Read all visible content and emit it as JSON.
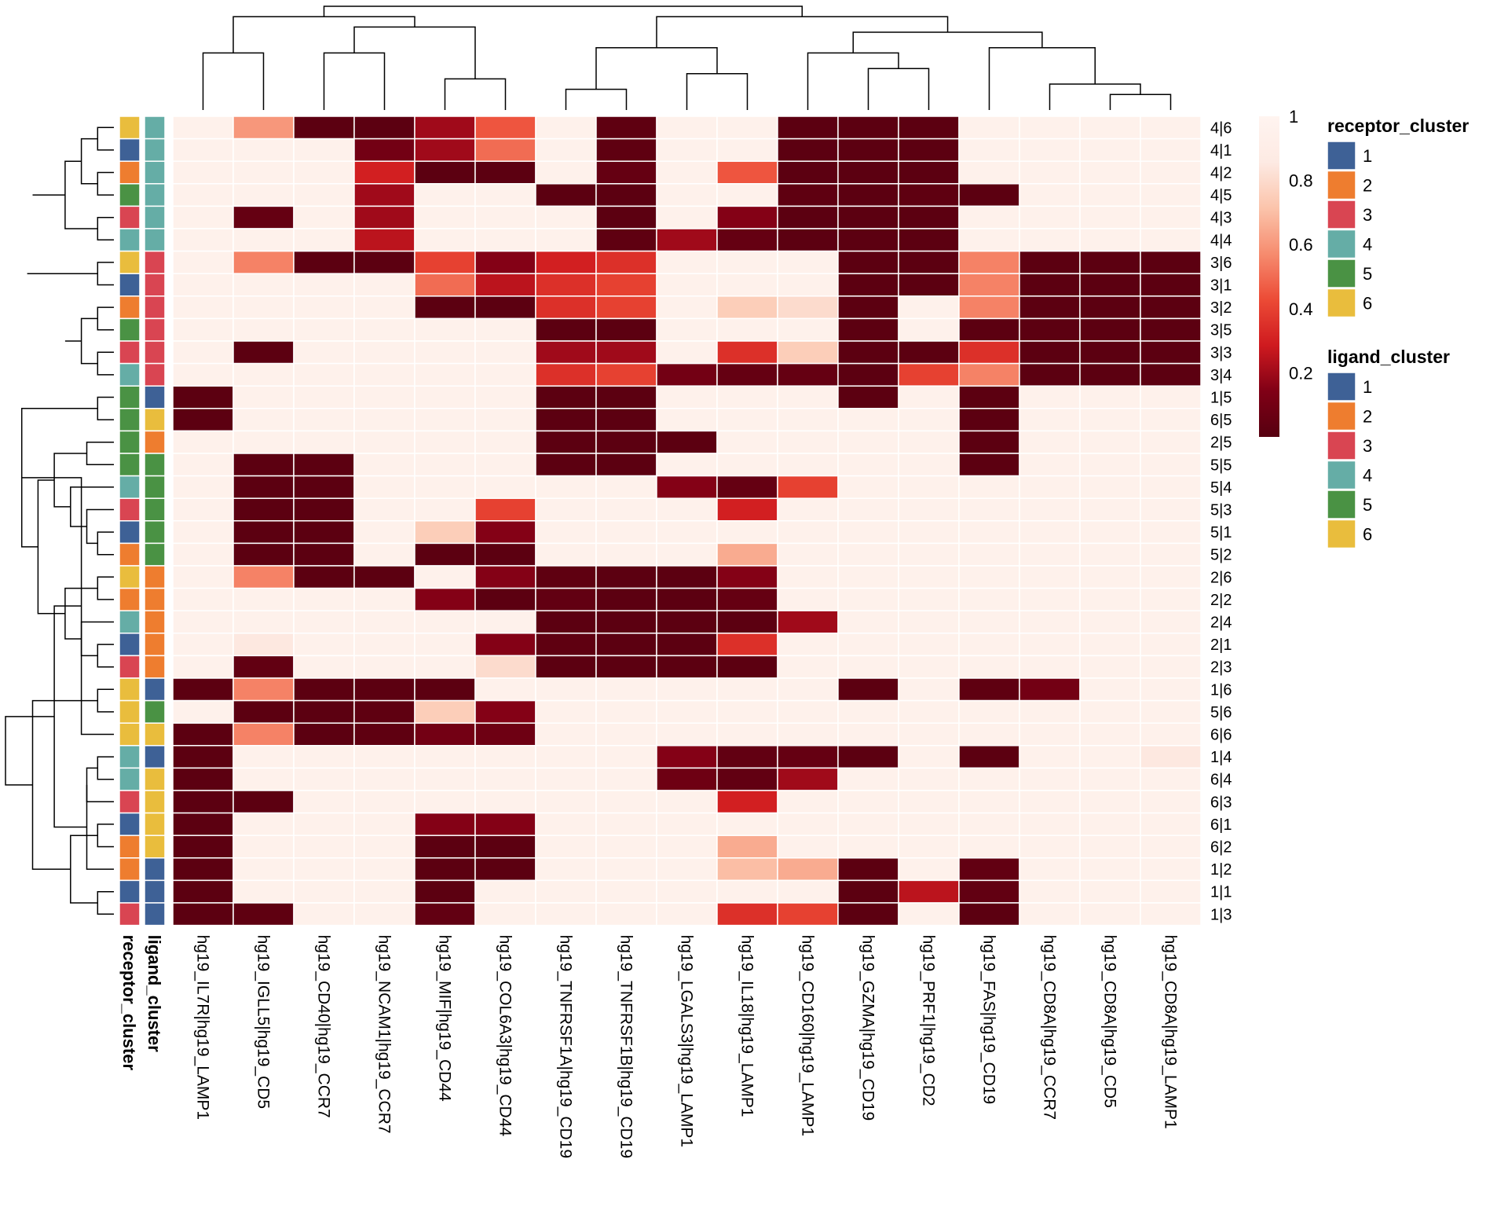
{
  "chart_data": {
    "type": "heatmap",
    "columns": [
      "hg19_IL7R|hg19_LAMP1",
      "hg19_IGLL5|hg19_CD5",
      "hg19_CD40|hg19_CCR7",
      "hg19_NCAM1|hg19_CCR7",
      "hg19_MIF|hg19_CD44",
      "hg19_COL6A3|hg19_CD44",
      "hg19_TNFRSF1A|hg19_CD19",
      "hg19_TNFRSF1B|hg19_CD19",
      "hg19_LGALS3|hg19_LAMP1",
      "hg19_IL18|hg19_LAMP1",
      "hg19_CD160|hg19_LAMP1",
      "hg19_GZMA|hg19_CD19",
      "hg19_PRF1|hg19_CD2",
      "hg19_FAS|hg19_CD19",
      "hg19_CD8A|hg19_CCR7",
      "hg19_CD8A|hg19_CD5",
      "hg19_CD8A|hg19_LAMP1"
    ],
    "rows": [
      "4|6",
      "4|1",
      "4|2",
      "4|5",
      "4|3",
      "4|4",
      "3|6",
      "3|1",
      "3|2",
      "3|5",
      "3|3",
      "3|4",
      "1|5",
      "6|5",
      "2|5",
      "5|5",
      "5|4",
      "5|3",
      "5|1",
      "5|2",
      "2|6",
      "2|2",
      "2|4",
      "2|1",
      "2|3",
      "1|6",
      "5|6",
      "6|6",
      "1|4",
      "6|4",
      "6|3",
      "6|1",
      "6|2",
      "1|2",
      "1|1",
      "1|3"
    ],
    "receptor_cluster": [
      6,
      1,
      2,
      5,
      3,
      4,
      6,
      1,
      2,
      5,
      3,
      4,
      5,
      5,
      5,
      5,
      4,
      3,
      1,
      2,
      6,
      2,
      4,
      1,
      3,
      6,
      6,
      6,
      4,
      4,
      3,
      1,
      2,
      2,
      1,
      3
    ],
    "ligand_cluster": [
      4,
      4,
      4,
      4,
      4,
      4,
      3,
      3,
      3,
      3,
      3,
      3,
      1,
      6,
      2,
      5,
      5,
      5,
      5,
      5,
      2,
      2,
      2,
      2,
      2,
      1,
      5,
      6,
      1,
      6,
      6,
      6,
      6,
      1,
      1,
      1
    ],
    "values": [
      [
        0.95,
        0.6,
        0.02,
        0.02,
        0.2,
        0.45,
        0.95,
        0.03,
        0.95,
        0.95,
        0.02,
        0.02,
        0.02,
        0.95,
        0.95,
        0.95,
        0.95
      ],
      [
        0.95,
        0.95,
        0.95,
        0.1,
        0.2,
        0.5,
        0.95,
        0.03,
        0.95,
        0.95,
        0.02,
        0.02,
        0.02,
        0.95,
        0.95,
        0.95,
        0.95
      ],
      [
        0.95,
        0.95,
        0.95,
        0.3,
        0.02,
        0.02,
        0.95,
        0.05,
        0.95,
        0.45,
        0.02,
        0.02,
        0.02,
        0.95,
        0.95,
        0.95,
        0.95
      ],
      [
        0.95,
        0.95,
        0.95,
        0.2,
        0.95,
        0.95,
        0.02,
        0.02,
        0.95,
        0.95,
        0.03,
        0.02,
        0.03,
        0.02,
        0.95,
        0.95,
        0.95
      ],
      [
        0.95,
        0.05,
        0.95,
        0.2,
        0.95,
        0.95,
        0.95,
        0.02,
        0.95,
        0.15,
        0.02,
        0.02,
        0.02,
        0.95,
        0.95,
        0.95,
        0.95
      ],
      [
        0.95,
        0.95,
        0.95,
        0.25,
        0.95,
        0.95,
        0.95,
        0.03,
        0.2,
        0.05,
        0.02,
        0.02,
        0.02,
        0.95,
        0.95,
        0.95,
        0.95
      ],
      [
        0.95,
        0.55,
        0.02,
        0.02,
        0.4,
        0.15,
        0.3,
        0.35,
        0.95,
        0.95,
        0.95,
        0.02,
        0.02,
        0.55,
        0.02,
        0.02,
        0.02
      ],
      [
        0.95,
        0.95,
        0.95,
        0.95,
        0.5,
        0.25,
        0.35,
        0.4,
        0.95,
        0.95,
        0.95,
        0.02,
        0.02,
        0.55,
        0.02,
        0.02,
        0.02
      ],
      [
        0.95,
        0.95,
        0.95,
        0.95,
        0.02,
        0.02,
        0.35,
        0.4,
        0.95,
        0.75,
        0.8,
        0.02,
        0.95,
        0.55,
        0.02,
        0.02,
        0.02
      ],
      [
        0.95,
        0.95,
        0.95,
        0.95,
        0.95,
        0.95,
        0.02,
        0.02,
        0.95,
        0.95,
        0.95,
        0.02,
        0.95,
        0.02,
        0.02,
        0.02,
        0.02
      ],
      [
        0.95,
        0.02,
        0.95,
        0.95,
        0.95,
        0.95,
        0.2,
        0.2,
        0.95,
        0.35,
        0.75,
        0.02,
        0.02,
        0.35,
        0.02,
        0.02,
        0.02
      ],
      [
        0.95,
        0.95,
        0.95,
        0.95,
        0.95,
        0.95,
        0.35,
        0.4,
        0.1,
        0.05,
        0.05,
        0.02,
        0.4,
        0.55,
        0.02,
        0.02,
        0.02
      ],
      [
        0.02,
        0.95,
        0.95,
        0.95,
        0.95,
        0.95,
        0.02,
        0.02,
        0.95,
        0.95,
        0.95,
        0.02,
        0.95,
        0.02,
        0.95,
        0.95,
        0.95
      ],
      [
        0.02,
        0.95,
        0.95,
        0.95,
        0.95,
        0.95,
        0.02,
        0.02,
        0.95,
        0.95,
        0.95,
        0.95,
        0.95,
        0.02,
        0.95,
        0.95,
        0.95
      ],
      [
        0.95,
        0.95,
        0.95,
        0.95,
        0.95,
        0.95,
        0.02,
        0.02,
        0.02,
        0.95,
        0.95,
        0.95,
        0.95,
        0.02,
        0.95,
        0.95,
        0.95
      ],
      [
        0.95,
        0.02,
        0.02,
        0.95,
        0.95,
        0.95,
        0.02,
        0.02,
        0.95,
        0.95,
        0.95,
        0.95,
        0.95,
        0.02,
        0.95,
        0.95,
        0.95
      ],
      [
        0.95,
        0.02,
        0.02,
        0.95,
        0.95,
        0.95,
        0.95,
        0.95,
        0.15,
        0.05,
        0.4,
        0.95,
        0.95,
        0.95,
        0.95,
        0.95,
        0.95
      ],
      [
        0.95,
        0.02,
        0.02,
        0.95,
        0.95,
        0.4,
        0.95,
        0.95,
        0.95,
        0.3,
        0.95,
        0.95,
        0.95,
        0.95,
        0.95,
        0.95,
        0.95
      ],
      [
        0.95,
        0.02,
        0.02,
        0.95,
        0.75,
        0.15,
        0.95,
        0.95,
        0.95,
        0.95,
        0.95,
        0.95,
        0.95,
        0.95,
        0.95,
        0.95,
        0.95
      ],
      [
        0.95,
        0.02,
        0.02,
        0.95,
        0.02,
        0.02,
        0.95,
        0.95,
        0.95,
        0.65,
        0.95,
        0.95,
        0.95,
        0.95,
        0.95,
        0.95,
        0.95
      ],
      [
        0.95,
        0.55,
        0.02,
        0.02,
        0.95,
        0.15,
        0.03,
        0.02,
        0.02,
        0.15,
        0.95,
        0.95,
        0.95,
        0.95,
        0.95,
        0.95,
        0.95
      ],
      [
        0.95,
        0.95,
        0.95,
        0.95,
        0.15,
        0.02,
        0.04,
        0.02,
        0.02,
        0.05,
        0.95,
        0.95,
        0.95,
        0.95,
        0.95,
        0.95,
        0.95
      ],
      [
        0.95,
        0.95,
        0.95,
        0.95,
        0.95,
        0.95,
        0.02,
        0.02,
        0.02,
        0.02,
        0.2,
        0.95,
        0.95,
        0.95,
        0.95,
        0.95,
        0.95
      ],
      [
        0.95,
        0.85,
        0.95,
        0.95,
        0.95,
        0.15,
        0.03,
        0.02,
        0.02,
        0.35,
        0.95,
        0.95,
        0.95,
        0.95,
        0.95,
        0.95,
        0.95
      ],
      [
        0.95,
        0.04,
        0.95,
        0.95,
        0.95,
        0.8,
        0.02,
        0.02,
        0.02,
        0.02,
        0.95,
        0.95,
        0.95,
        0.95,
        0.95,
        0.95,
        0.95
      ],
      [
        0.02,
        0.55,
        0.02,
        0.02,
        0.02,
        0.95,
        0.95,
        0.95,
        0.95,
        0.95,
        0.95,
        0.02,
        0.95,
        0.03,
        0.1,
        0.95,
        0.95
      ],
      [
        0.95,
        0.02,
        0.02,
        0.03,
        0.75,
        0.15,
        0.95,
        0.95,
        0.95,
        0.95,
        0.95,
        0.95,
        0.95,
        0.95,
        0.95,
        0.95,
        0.95
      ],
      [
        0.02,
        0.55,
        0.02,
        0.03,
        0.1,
        0.08,
        0.95,
        0.95,
        0.95,
        0.95,
        0.95,
        0.95,
        0.95,
        0.95,
        0.95,
        0.95,
        0.95
      ],
      [
        0.02,
        0.95,
        0.95,
        0.95,
        0.95,
        0.95,
        0.95,
        0.95,
        0.15,
        0.04,
        0.05,
        0.02,
        0.95,
        0.02,
        0.95,
        0.95,
        0.85
      ],
      [
        0.02,
        0.95,
        0.95,
        0.95,
        0.95,
        0.95,
        0.95,
        0.95,
        0.08,
        0.04,
        0.2,
        0.95,
        0.95,
        0.95,
        0.95,
        0.95,
        0.95
      ],
      [
        0.02,
        0.02,
        0.95,
        0.95,
        0.95,
        0.95,
        0.95,
        0.95,
        0.95,
        0.3,
        0.95,
        0.95,
        0.95,
        0.95,
        0.95,
        0.95,
        0.95
      ],
      [
        0.02,
        0.95,
        0.95,
        0.95,
        0.15,
        0.15,
        0.95,
        0.95,
        0.95,
        0.95,
        0.95,
        0.95,
        0.95,
        0.95,
        0.95,
        0.95,
        0.95
      ],
      [
        0.02,
        0.95,
        0.95,
        0.95,
        0.02,
        0.02,
        0.95,
        0.95,
        0.95,
        0.65,
        0.95,
        0.95,
        0.95,
        0.95,
        0.95,
        0.95,
        0.95
      ],
      [
        0.02,
        0.95,
        0.95,
        0.95,
        0.02,
        0.02,
        0.95,
        0.95,
        0.95,
        0.7,
        0.65,
        0.02,
        0.95,
        0.04,
        0.95,
        0.95,
        0.95
      ],
      [
        0.02,
        0.95,
        0.95,
        0.95,
        0.02,
        0.95,
        0.95,
        0.95,
        0.95,
        0.95,
        0.95,
        0.02,
        0.25,
        0.04,
        0.95,
        0.95,
        0.95
      ],
      [
        0.02,
        0.03,
        0.95,
        0.95,
        0.04,
        0.95,
        0.95,
        0.95,
        0.95,
        0.35,
        0.4,
        0.02,
        0.95,
        0.02,
        0.95,
        0.95,
        0.95
      ]
    ],
    "colorbar": {
      "ticks": [
        "1",
        "0.8",
        "0.6",
        "0.4",
        "0.2"
      ],
      "tick_values": [
        1,
        0.8,
        0.6,
        0.4,
        0.2
      ],
      "range": [
        0,
        1
      ]
    },
    "legends": [
      {
        "title": "receptor_cluster",
        "labels": [
          "1",
          "2",
          "3",
          "4",
          "5",
          "6"
        ]
      },
      {
        "title": "ligand_cluster",
        "labels": [
          "1",
          "2",
          "3",
          "4",
          "5",
          "6"
        ]
      }
    ],
    "annotation_labels": [
      "receptor_cluster",
      "ligand_cluster"
    ],
    "cluster_colors": [
      "#3e6196",
      "#ee7d2f",
      "#d94552",
      "#65ada6",
      "#4a9244",
      "#e9bd3d"
    ],
    "colorscale": [
      "#560010",
      "#800016",
      "#cf1a1f",
      "#ec4b36",
      "#f68c6f",
      "#fbc4ab",
      "#fdeae3",
      "#fff4f0"
    ],
    "row_dendrogram": [
      [
        0,
        1,
        0.15
      ],
      [
        2,
        3,
        0.15
      ],
      [
        4,
        5,
        0.15
      ],
      [
        36,
        37,
        0.3
      ],
      [
        38,
        39,
        0.45
      ],
      [
        40,
        41,
        0.75
      ],
      [
        6,
        7,
        0.15
      ],
      [
        8,
        9,
        0.15
      ],
      [
        10,
        11,
        0.15
      ],
      [
        43,
        44,
        0.3
      ],
      [
        45,
        46,
        0.45
      ],
      [
        42,
        47,
        0.8
      ],
      [
        12,
        13,
        0.15
      ],
      [
        14,
        15,
        0.25
      ],
      [
        18,
        19,
        0.15
      ],
      [
        17,
        50,
        0.25
      ],
      [
        16,
        51,
        0.4
      ],
      [
        49,
        52,
        0.55
      ],
      [
        20,
        21,
        0.15
      ],
      [
        23,
        24,
        0.15
      ],
      [
        22,
        55,
        0.3
      ],
      [
        54,
        56,
        0.45
      ],
      [
        53,
        57,
        0.7
      ],
      [
        48,
        58,
        0.85
      ],
      [
        25,
        26,
        0.15
      ],
      [
        59,
        27,
        0.3
      ],
      [
        28,
        29,
        0.15
      ],
      [
        31,
        32,
        0.15
      ],
      [
        30,
        62,
        0.25
      ],
      [
        34,
        35,
        0.15
      ],
      [
        33,
        64,
        0.25
      ],
      [
        63,
        65,
        0.4
      ],
      [
        61,
        66,
        0.55
      ],
      [
        60,
        67,
        0.75
      ],
      [
        68,
        69,
        1.0
      ]
    ],
    "col_dendrogram": [
      [
        2,
        3,
        0.55
      ],
      [
        4,
        5,
        0.3
      ],
      [
        0,
        1,
        0.55
      ],
      [
        17,
        18,
        0.8
      ],
      [
        19,
        20,
        0.9
      ],
      [
        6,
        7,
        0.2
      ],
      [
        8,
        9,
        0.35
      ],
      [
        22,
        23,
        0.6
      ],
      [
        11,
        12,
        0.4
      ],
      [
        10,
        25,
        0.55
      ],
      [
        15,
        16,
        0.15
      ],
      [
        14,
        27,
        0.25
      ],
      [
        13,
        28,
        0.6
      ],
      [
        26,
        29,
        0.75
      ],
      [
        24,
        30,
        0.9
      ],
      [
        21,
        31,
        1.0
      ]
    ]
  }
}
